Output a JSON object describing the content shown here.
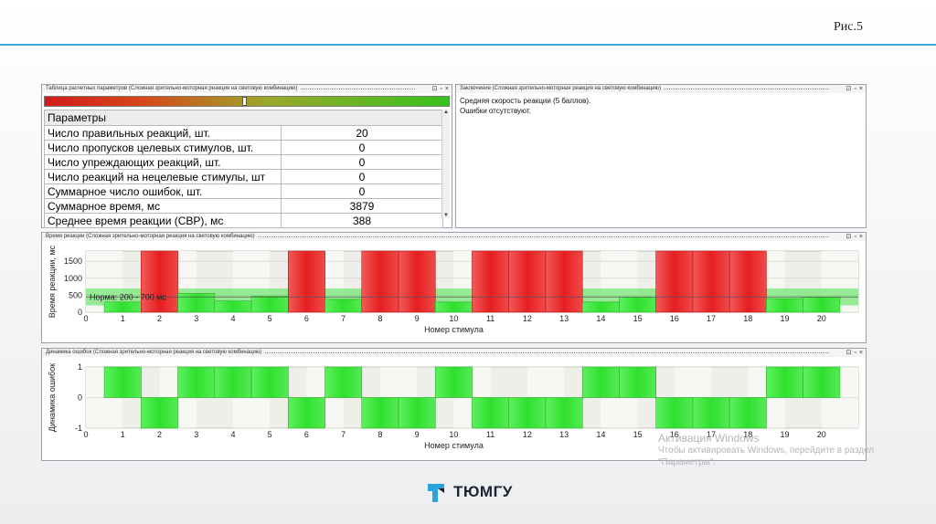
{
  "slide": {
    "figure_label": "Рис.5",
    "accent": "#3aa6d8"
  },
  "params_panel": {
    "title": "Таблица расчетных параметров (Сложная зрительно-моторная реакция на световую комбинацию)",
    "header": "Параметры",
    "rows": [
      {
        "label": "Число правильных реакций, шт.",
        "value": "20"
      },
      {
        "label": "Число пропусков целевых стимулов, шт.",
        "value": "0"
      },
      {
        "label": "Число упреждающих реакций, шт.",
        "value": "0"
      },
      {
        "label": "Число реакций на нецелевые стимулы, шт",
        "value": "0"
      },
      {
        "label": "Суммарное число ошибок, шт.",
        "value": "0"
      },
      {
        "label": "Суммарное время, мс",
        "value": "3879"
      },
      {
        "label": "Среднее время реакции (СВР), мс",
        "value": "388"
      }
    ],
    "slider_position": 0.49
  },
  "conclusion_panel": {
    "title": "Заключение (Сложная зрительно-моторная реакция на световую комбинацию)",
    "lines": [
      "Средняя скорость реакции (5 баллов).",
      "Ошибки отсутствуют."
    ]
  },
  "panel_buttons": {
    "pin": "⊡",
    "restore": "▫",
    "close": "×"
  },
  "chart_data": [
    {
      "type": "bar",
      "title": "Время реакции (Сложная зрительно-моторная реакция на световую комбинацию)",
      "xlabel": "Номер стимула",
      "ylabel": "Время реакции, мс",
      "x_ticks": [
        0,
        1,
        2,
        3,
        4,
        5,
        6,
        7,
        8,
        9,
        10,
        11,
        12,
        13,
        14,
        15,
        16,
        17,
        18,
        19,
        20
      ],
      "y_ticks": [
        0,
        500,
        1000,
        1500
      ],
      "ylim": [
        0,
        1800
      ],
      "norm_band": {
        "label": "Норма: 200 - 700 мс",
        "from": 200,
        "to": 700,
        "color": "#4be04b"
      },
      "categories": [
        1,
        2,
        3,
        4,
        5,
        6,
        7,
        8,
        9,
        10,
        11,
        12,
        13,
        14,
        15,
        16,
        17,
        18,
        19,
        20
      ],
      "values": [
        300,
        1800,
        550,
        330,
        470,
        1800,
        380,
        1800,
        1800,
        300,
        1800,
        1800,
        1800,
        300,
        450,
        1800,
        1800,
        1800,
        400,
        440
      ],
      "colors": {
        "normal": "#3fe03f",
        "target": "#ee2222"
      },
      "grid": true
    },
    {
      "type": "bar",
      "title": "Динамика ошибок (Сложная зрительно-моторная реакция на световую комбинацию)",
      "xlabel": "Номер стимула",
      "ylabel": "Динамика ошибок",
      "x_ticks": [
        0,
        1,
        2,
        3,
        4,
        5,
        6,
        7,
        8,
        9,
        10,
        11,
        12,
        13,
        14,
        15,
        16,
        17,
        18,
        19,
        20
      ],
      "y_ticks": [
        -1,
        0,
        1
      ],
      "ylim": [
        -1,
        1
      ],
      "categories": [
        1,
        2,
        3,
        4,
        5,
        6,
        7,
        8,
        9,
        10,
        11,
        12,
        13,
        14,
        15,
        16,
        17,
        18,
        19,
        20
      ],
      "values": [
        1,
        -1,
        1,
        1,
        1,
        -1,
        1,
        -1,
        -1,
        1,
        -1,
        -1,
        -1,
        1,
        1,
        -1,
        -1,
        -1,
        1,
        1
      ],
      "colors": {
        "bar": "#3fe03f"
      },
      "grid": true
    }
  ],
  "watermark": {
    "line1": "Активация Windows",
    "line2": "Чтобы активировать Windows, перейдите в раздел",
    "line3": "\"Параметры\"."
  },
  "logo": {
    "text": "ТЮМГУ",
    "color": "#2aa3dd"
  }
}
